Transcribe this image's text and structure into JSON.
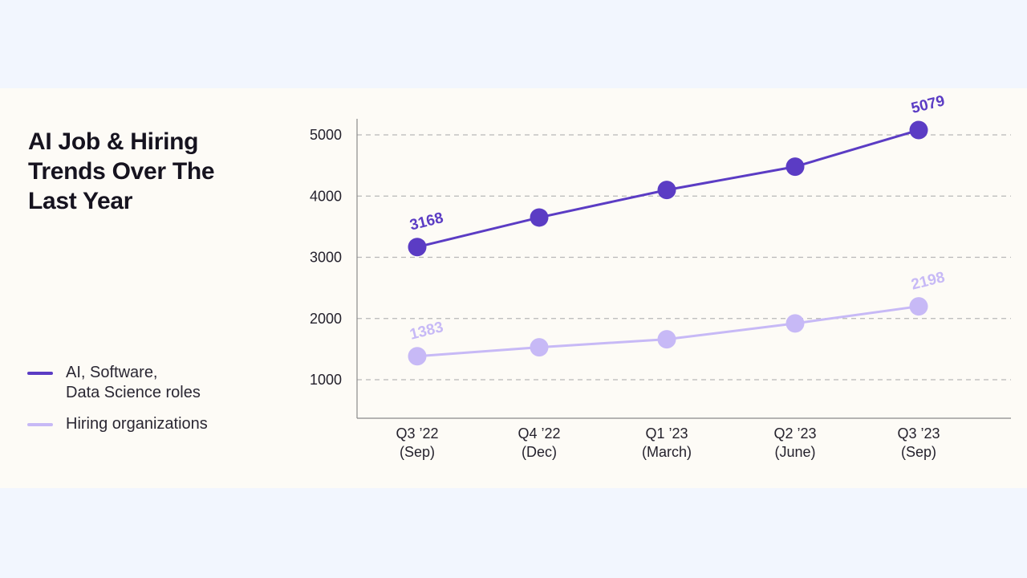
{
  "title": "AI Job & Hiring Trends Over The Last Year",
  "colors": {
    "page_background": "#f2f6fe",
    "card_background": "#fdfbf6",
    "series_primary": "#5b3cc4",
    "series_secondary": "#c7b9f6",
    "grid": "#b8b8b8",
    "axis": "#8a8a8a"
  },
  "legend": {
    "items": [
      {
        "label": "AI, Software,\nData Science roles",
        "color": "#5b3cc4"
      },
      {
        "label": "Hiring organizations",
        "color": "#c7b9f6"
      }
    ]
  },
  "chart_data": {
    "type": "line",
    "categories": [
      "Q3 ’22\n(Sep)",
      "Q4 ’22\n(Dec)",
      "Q1 ’23\n(March)",
      "Q2 ’23\n(June)",
      "Q3 ’23\n(Sep)"
    ],
    "series": [
      {
        "name": "AI, Software, Data Science roles",
        "values": [
          3168,
          3650,
          4100,
          4480,
          5079
        ],
        "labels": [
          "3168",
          "",
          "",
          "",
          "5079"
        ],
        "color": "#5b3cc4"
      },
      {
        "name": "Hiring organizations",
        "values": [
          1383,
          1530,
          1660,
          1920,
          2198
        ],
        "labels": [
          "1383",
          "",
          "",
          "",
          "2198"
        ],
        "color": "#c7b9f6"
      }
    ],
    "yticks": [
      1000,
      2000,
      3000,
      4000,
      5000
    ],
    "ylim": [
      400,
      5200
    ],
    "grid": "horizontal dashed",
    "legend_placement": "bottom-left"
  }
}
